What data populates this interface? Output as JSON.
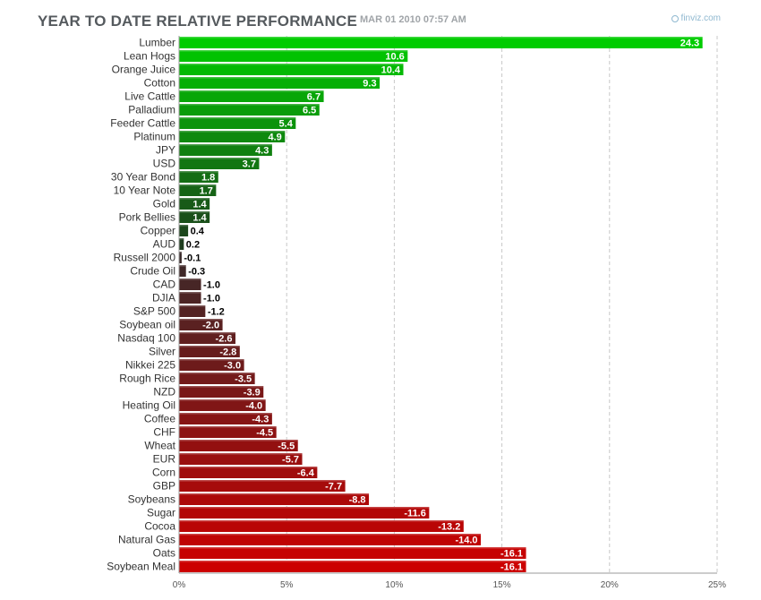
{
  "header": {
    "title": "YEAR TO DATE RELATIVE PERFORMANCE",
    "date": "MAR 01 2010 07:57 AM",
    "brand": "finviz.com",
    "brand_icon": "finviz-logo-icon"
  },
  "colors": {
    "positive_top": "#00cc00",
    "positive_bottom": "#1e3d1e",
    "negative_top": "#3a2a2a",
    "negative_bottom": "#cc0000"
  },
  "chart_data": {
    "type": "bar",
    "orientation": "horizontal",
    "title": "YEAR TO DATE RELATIVE PERFORMANCE",
    "categories": [
      "Lumber",
      "Lean Hogs",
      "Orange Juice",
      "Cotton",
      "Live Cattle",
      "Palladium",
      "Feeder Cattle",
      "Platinum",
      "JPY",
      "USD",
      "30 Year Bond",
      "10 Year Note",
      "Gold",
      "Pork Bellies",
      "Copper",
      "AUD",
      "Russell 2000",
      "Crude Oil",
      "CAD",
      "DJIA",
      "S&P 500",
      "Soybean oil",
      "Nasdaq 100",
      "Silver",
      "Nikkei 225",
      "Rough Rice",
      "NZD",
      "Heating Oil",
      "Coffee",
      "CHF",
      "Wheat",
      "EUR",
      "Corn",
      "GBP",
      "Soybeans",
      "Sugar",
      "Cocoa",
      "Natural Gas",
      "Oats",
      "Soybean Meal"
    ],
    "values": [
      24.3,
      10.6,
      10.4,
      9.3,
      6.7,
      6.5,
      5.4,
      4.9,
      4.3,
      3.7,
      1.8,
      1.7,
      1.4,
      1.4,
      0.4,
      0.2,
      -0.1,
      -0.3,
      -1.0,
      -1.0,
      -1.2,
      -2.0,
      -2.6,
      -2.8,
      -3.0,
      -3.5,
      -3.9,
      -4.0,
      -4.3,
      -4.5,
      -5.5,
      -5.7,
      -6.4,
      -7.7,
      -8.8,
      -11.6,
      -13.2,
      -14.0,
      -16.1,
      -16.1
    ],
    "value_labels": [
      "24.3",
      "10.6",
      "10.4",
      "9.3",
      "6.7",
      "6.5",
      "5.4",
      "4.9",
      "4.3",
      "3.7",
      "1.8",
      "1.7",
      "1.4",
      "1.4",
      "0.4",
      "0.2",
      "-0.1",
      "-0.3",
      "-1.0",
      "-1.0",
      "-1.2",
      "-2.0",
      "-2.6",
      "-2.8",
      "-3.0",
      "-3.5",
      "-3.9",
      "-4.0",
      "-4.3",
      "-4.5",
      "-5.5",
      "-5.7",
      "-6.4",
      "-7.7",
      "-8.8",
      "-11.6",
      "-13.2",
      "-14.0",
      "-16.1",
      "-16.1"
    ],
    "xlim": [
      0,
      25
    ],
    "x_ticks": [
      0,
      5,
      10,
      15,
      20,
      25
    ],
    "x_tick_labels": [
      "0%",
      "5%",
      "10%",
      "15%",
      "20%",
      "25%"
    ],
    "grid": "vertical-dashed",
    "magnitude_axis": true
  }
}
